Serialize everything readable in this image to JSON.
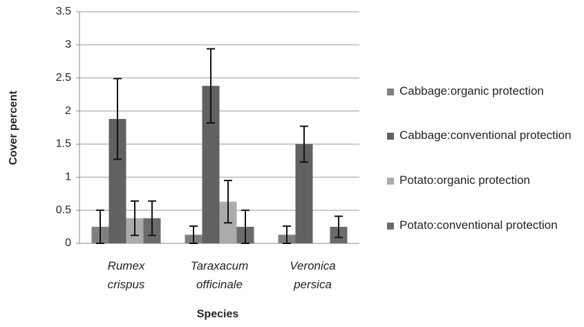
{
  "chart_data": {
    "type": "bar",
    "categories": [
      "Rumex crispus",
      "Taraxacum officinale",
      "Veronica persica"
    ],
    "series": [
      {
        "name": "Cabbage:organic protection",
        "color": "#7f7f7f",
        "values": [
          0.25,
          0.13,
          0.13
        ],
        "errors": [
          0.25,
          0.13,
          0.13
        ]
      },
      {
        "name": "Cabbage:conventional protection",
        "color": "#616161",
        "values": [
          1.88,
          2.38,
          1.5
        ],
        "errors": [
          0.61,
          0.56,
          0.27
        ]
      },
      {
        "name": "Potato:organic protection",
        "color": "#ababab",
        "values": [
          0.38,
          0.63,
          null
        ],
        "errors": [
          0.26,
          0.32,
          null
        ]
      },
      {
        "name": "Potato:conventional protection",
        "color": "#6b6b6b",
        "values": [
          0.38,
          0.25,
          0.25
        ],
        "errors": [
          0.26,
          0.25,
          0.16
        ]
      }
    ],
    "xlabel": "Species",
    "ylabel": "Cover percent",
    "ylim": [
      0,
      3.5
    ],
    "yticks": [
      0,
      0.5,
      1,
      1.5,
      2,
      2.5,
      3,
      3.5
    ],
    "grid": true,
    "legend": "right"
  }
}
